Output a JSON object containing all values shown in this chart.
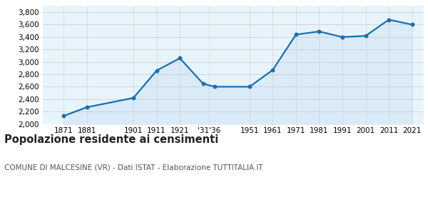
{
  "years": [
    1871,
    1881,
    1901,
    1911,
    1921,
    1931,
    1936,
    1951,
    1961,
    1971,
    1981,
    1991,
    2001,
    2011,
    2021
  ],
  "population": [
    2130,
    2270,
    2420,
    2860,
    3060,
    2650,
    2600,
    2600,
    2870,
    3440,
    3490,
    3400,
    3420,
    3680,
    3600
  ],
  "x_tick_labels": [
    "1871",
    "1881",
    "1901",
    "1911",
    "1921",
    "'31'36",
    "1951",
    "1961",
    "1971",
    "1981",
    "1991",
    "2001",
    "2011",
    "2021"
  ],
  "x_tick_positions": [
    1871,
    1881,
    1901,
    1911,
    1921,
    1933.5,
    1951,
    1961,
    1971,
    1981,
    1991,
    2001,
    2011,
    2021
  ],
  "ylim": [
    2000,
    3900
  ],
  "yticks": [
    2000,
    2200,
    2400,
    2600,
    2800,
    3000,
    3200,
    3400,
    3600,
    3800
  ],
  "line_color": "#1a6faf",
  "fill_color": "#daeaf7",
  "marker_color": "#1a6faf",
  "grid_color_h": "#c8c8c8",
  "grid_color_v": "#c8c8c8",
  "plot_bg_color": "#e8f4fb",
  "background_color": "#ffffff",
  "title": "Popolazione residente ai censimenti",
  "subtitle": "COMUNE DI MALCESINE (VR) - Dati ISTAT - Elaborazione TUTTITALIA.IT",
  "title_fontsize": 10.5,
  "subtitle_fontsize": 7.5,
  "tick_fontsize": 7.5,
  "xlim": [
    1862,
    2026
  ]
}
